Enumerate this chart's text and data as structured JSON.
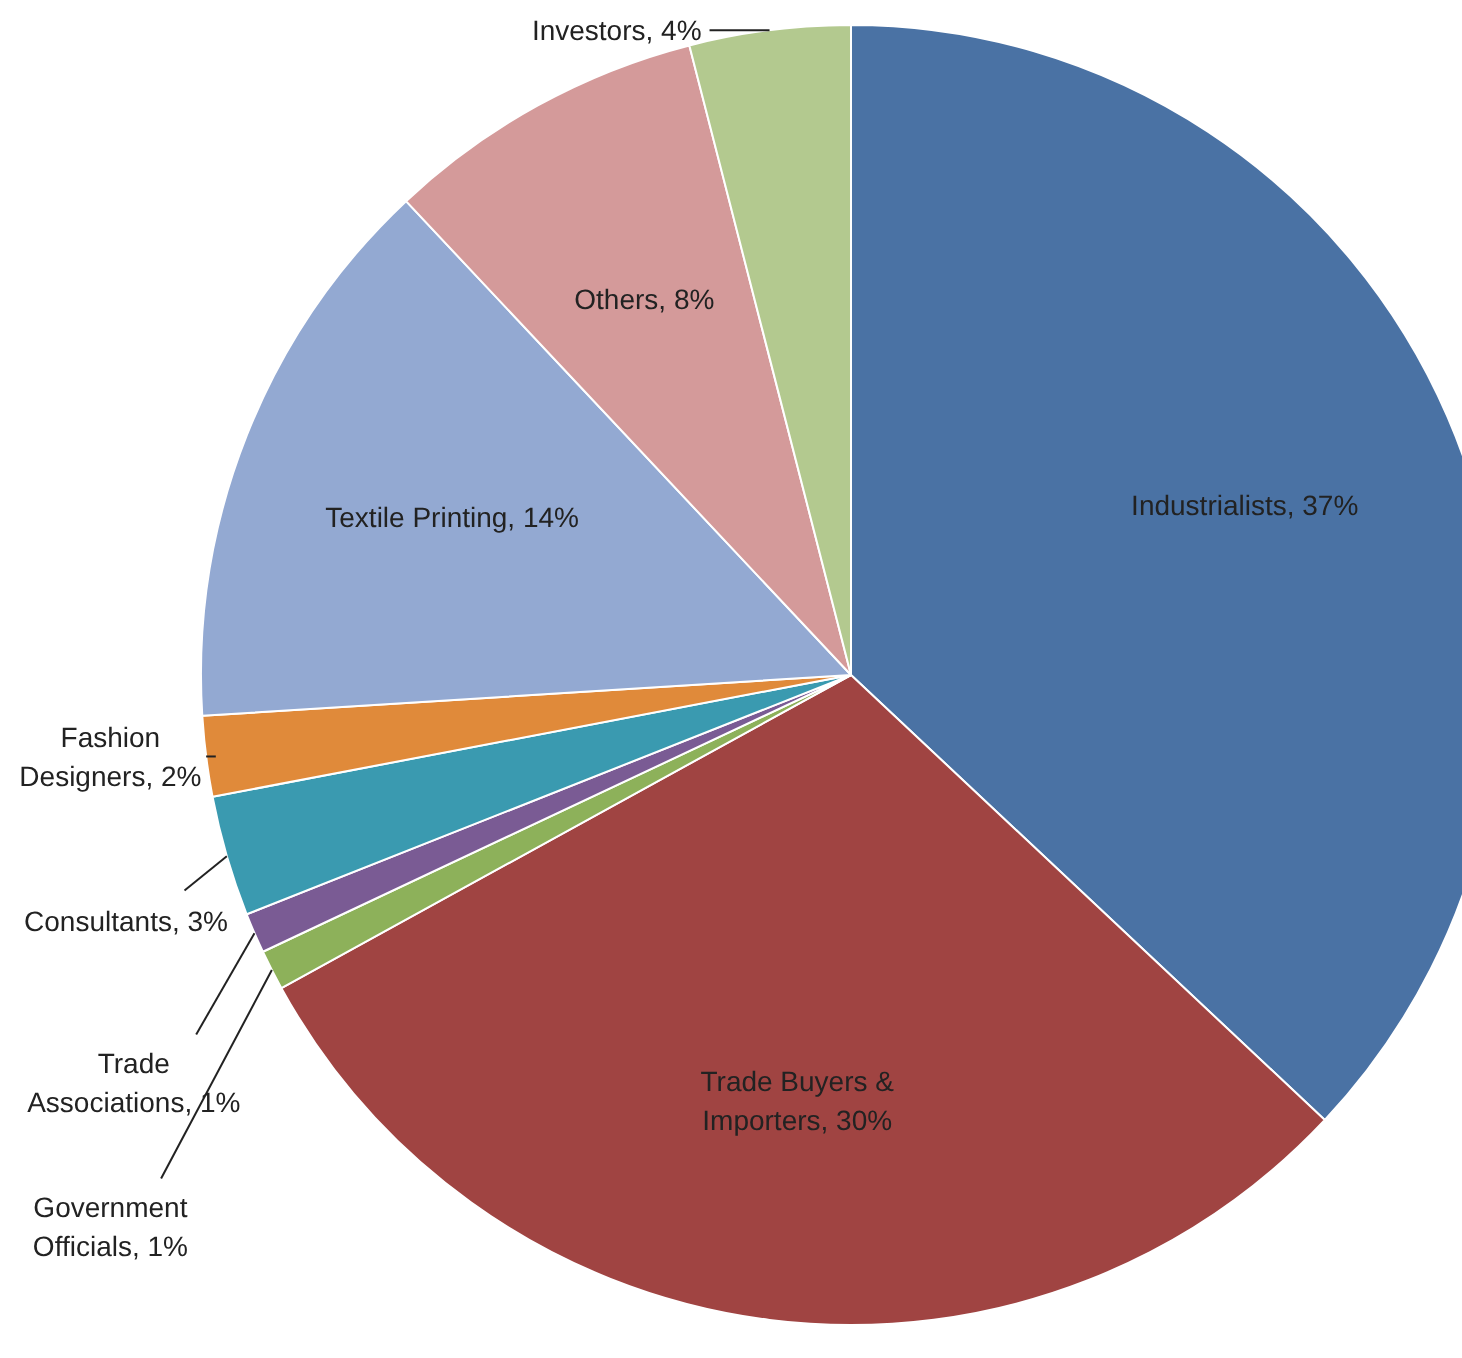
{
  "chart_data": {
    "type": "pie",
    "categories": [
      "Industrialists",
      "Trade Buyers & Importers",
      "Government Officials",
      "Trade Associations",
      "Consultants",
      "Fashion Designers",
      "Textile Printing",
      "Others",
      "Investors"
    ],
    "values": [
      37,
      30,
      1,
      1,
      3,
      2,
      14,
      8,
      4
    ],
    "colors": [
      "#4a72a4",
      "#a04442",
      "#8db15a",
      "#7a5b94",
      "#3a9ab0",
      "#e08a3a",
      "#93a9d2",
      "#d49a9a",
      "#b3c98f"
    ],
    "value_labels": [
      "37%",
      "30%",
      "1%",
      "1%",
      "3%",
      "2%",
      "14%",
      "8%",
      "4%"
    ]
  }
}
